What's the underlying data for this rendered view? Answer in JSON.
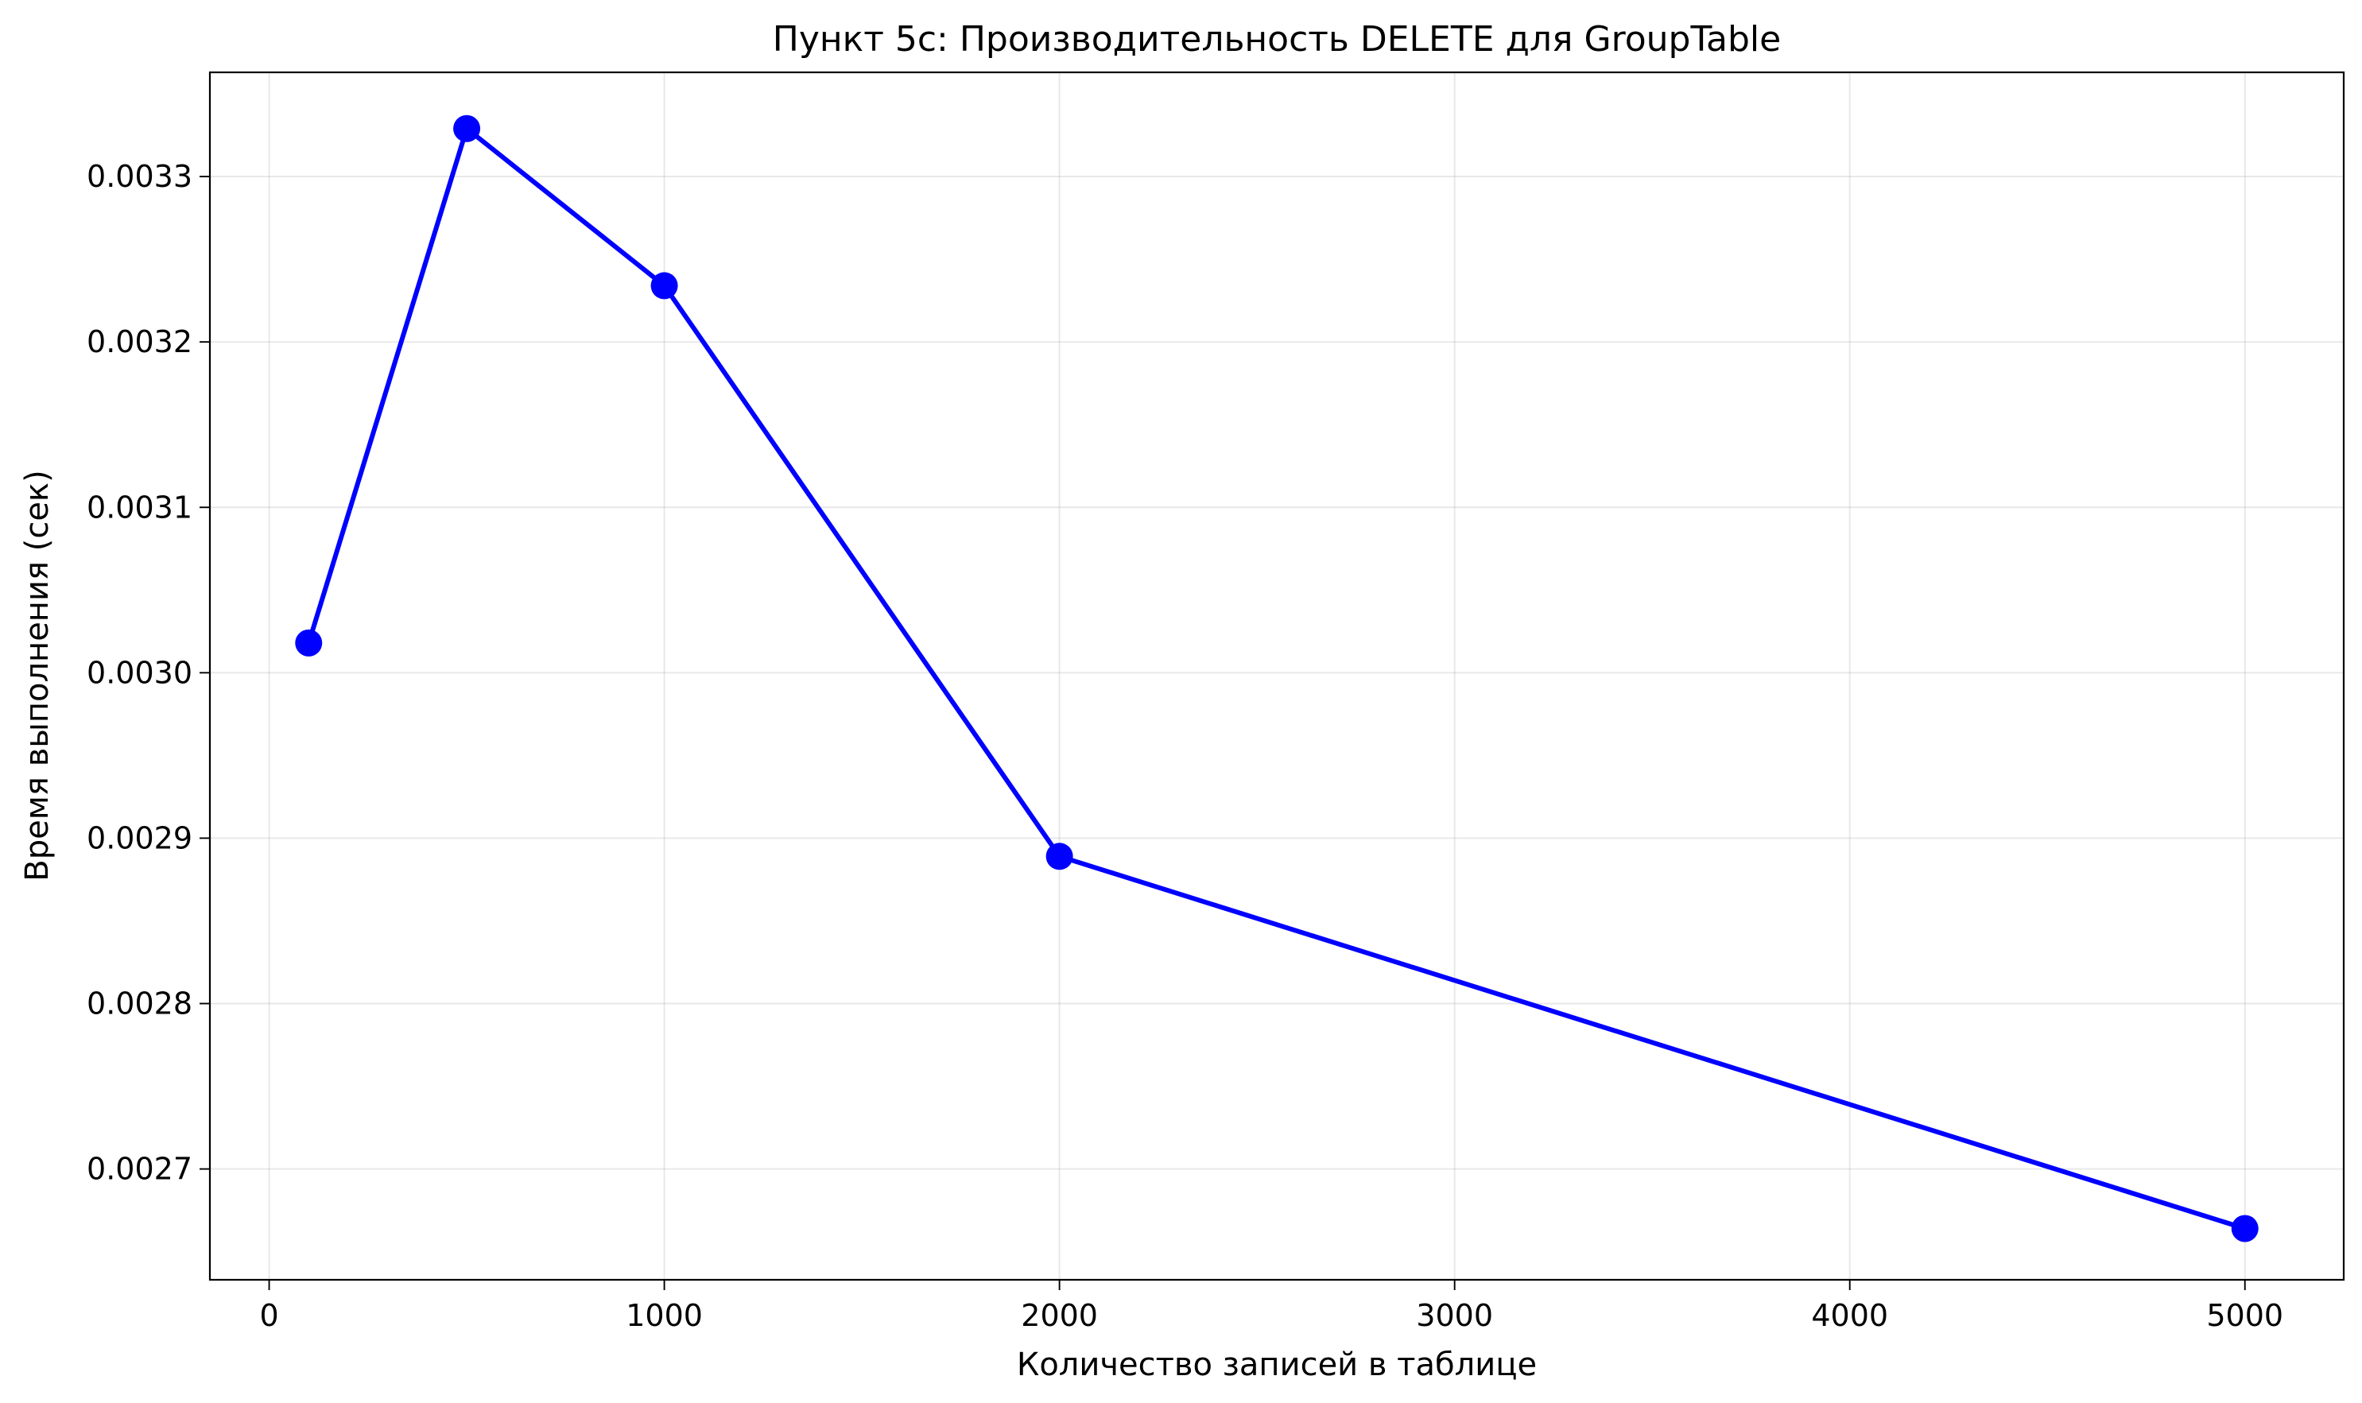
{
  "chart_data": {
    "type": "line",
    "title": "Пункт 5c: Производительность DELETE для GroupTable",
    "xlabel": "Количество записей в таблице",
    "ylabel": "Время выполнения (сек)",
    "x": [
      100,
      500,
      1000,
      2000,
      5000
    ],
    "series": [
      {
        "values": [
          0.003018,
          0.003329,
          0.003234,
          0.002889,
          0.002664
        ],
        "color": "#0000ff",
        "marker": "circle"
      }
    ],
    "xlim": [
      -150,
      5250
    ],
    "ylim": [
      0.002633,
      0.003363
    ],
    "x_ticks": [
      0,
      1000,
      2000,
      3000,
      4000,
      5000
    ],
    "x_tick_labels": [
      "0",
      "1000",
      "2000",
      "3000",
      "4000",
      "5000"
    ],
    "y_ticks": [
      0.0027,
      0.0028,
      0.0029,
      0.003,
      0.0031,
      0.0032,
      0.0033
    ],
    "y_tick_labels": [
      "0.0027",
      "0.0028",
      "0.0029",
      "0.0030",
      "0.0031",
      "0.0032",
      "0.0033"
    ],
    "grid": true,
    "legend": "none"
  }
}
